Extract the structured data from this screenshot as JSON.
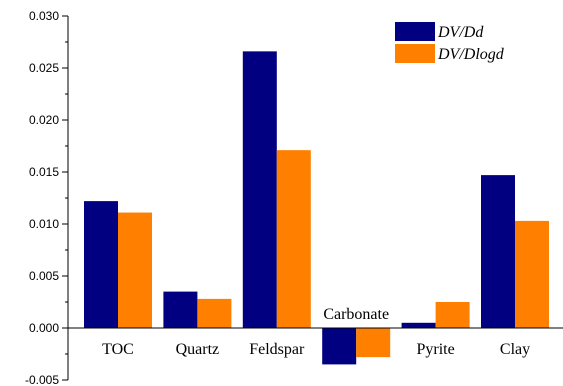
{
  "chart_data": {
    "type": "bar",
    "categories": [
      "TOC",
      "Quartz",
      "Feldspar",
      "Carbonate",
      "Pyrite",
      "Clay"
    ],
    "series": [
      {
        "name": "DV/Dd",
        "color": "#000080",
        "values": [
          0.0122,
          0.0035,
          0.0266,
          -0.0035,
          0.0005,
          0.0147
        ]
      },
      {
        "name": "DV/Dlogd",
        "color": "#ff8000",
        "values": [
          0.0111,
          0.0028,
          0.0171,
          -0.0028,
          0.0025,
          0.0103
        ]
      }
    ],
    "title": "",
    "xlabel": "",
    "ylabel": "",
    "ylim": [
      -0.005,
      0.03
    ],
    "yticks": [
      "-0.005",
      "0.000",
      "0.005",
      "0.010",
      "0.015",
      "0.020",
      "0.025",
      "0.030"
    ],
    "grid": false,
    "legend_position": "top-right",
    "category_label_above_bar": [
      "Carbonate"
    ]
  }
}
